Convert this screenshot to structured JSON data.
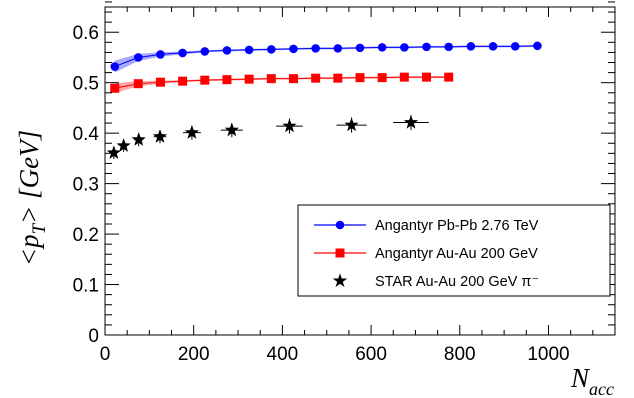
{
  "chart_data": {
    "type": "scatter",
    "title": "",
    "ylabel": {
      "prefix": "<p",
      "subscript": "T",
      "suffix": "> [GeV]"
    },
    "xlabel": {
      "main": "N",
      "subscript": "acc"
    },
    "xlim": [
      0,
      1150
    ],
    "ylim": [
      0,
      0.65
    ],
    "x_ticks": [
      0,
      200,
      400,
      600,
      800,
      1000
    ],
    "y_ticks": [
      0,
      0.1,
      0.2,
      0.3,
      0.4,
      0.5,
      0.6
    ],
    "x_tick_labels": [
      "0",
      "200",
      "400",
      "600",
      "800",
      "1000"
    ],
    "y_tick_labels": [
      "0",
      "0.1",
      "0.2",
      "0.3",
      "0.4",
      "0.5",
      "0.6"
    ],
    "grid": false,
    "legend_position": "bottom-right",
    "series": [
      {
        "name": "Angantyr Pb-Pb 2.76 TeV",
        "color": "#0000ff",
        "band_color": "#9999ff",
        "marker": "circle",
        "x": [
          22,
          75,
          125,
          175,
          225,
          275,
          325,
          375,
          425,
          475,
          525,
          575,
          625,
          675,
          725,
          775,
          825,
          875,
          925,
          975
        ],
        "y": [
          0.532,
          0.55,
          0.556,
          0.559,
          0.562,
          0.564,
          0.565,
          0.566,
          0.567,
          0.568,
          0.568,
          0.569,
          0.57,
          0.57,
          0.571,
          0.571,
          0.572,
          0.572,
          0.572,
          0.573
        ],
        "band": [
          0.012,
          0.007,
          0.004,
          0.003,
          0.002,
          0.002,
          0.002,
          0.002,
          0.002,
          0.002,
          0.002,
          0.002,
          0.002,
          0.002,
          0.002,
          0.002,
          0.002,
          0.002,
          0.002,
          0.002
        ]
      },
      {
        "name": "Angantyr Au-Au 200 GeV",
        "color": "#ff0000",
        "band_color": "#ff9999",
        "marker": "square",
        "x": [
          22,
          75,
          125,
          175,
          225,
          275,
          325,
          375,
          425,
          475,
          525,
          575,
          625,
          675,
          725,
          775
        ],
        "y": [
          0.489,
          0.498,
          0.501,
          0.503,
          0.505,
          0.506,
          0.507,
          0.508,
          0.508,
          0.509,
          0.509,
          0.51,
          0.51,
          0.511,
          0.511,
          0.511
        ],
        "band": [
          0.01,
          0.005,
          0.003,
          0.002,
          0.002,
          0.002,
          0.002,
          0.002,
          0.002,
          0.002,
          0.002,
          0.002,
          0.002,
          0.002,
          0.002,
          0.002
        ]
      },
      {
        "name": "STAR Au-Au 200 GeV π⁻",
        "color": "#000000",
        "marker": "star",
        "x": [
          20,
          42,
          76,
          124,
          196,
          286,
          416,
          556,
          690
        ],
        "y": [
          0.361,
          0.375,
          0.387,
          0.393,
          0.401,
          0.406,
          0.414,
          0.416,
          0.421
        ],
        "xerr": [
          4,
          6,
          10,
          14,
          20,
          25,
          30,
          34,
          40
        ],
        "yerr": [
          0.012,
          0.012,
          0.013,
          0.013,
          0.014,
          0.014,
          0.015,
          0.015,
          0.015
        ]
      }
    ]
  }
}
